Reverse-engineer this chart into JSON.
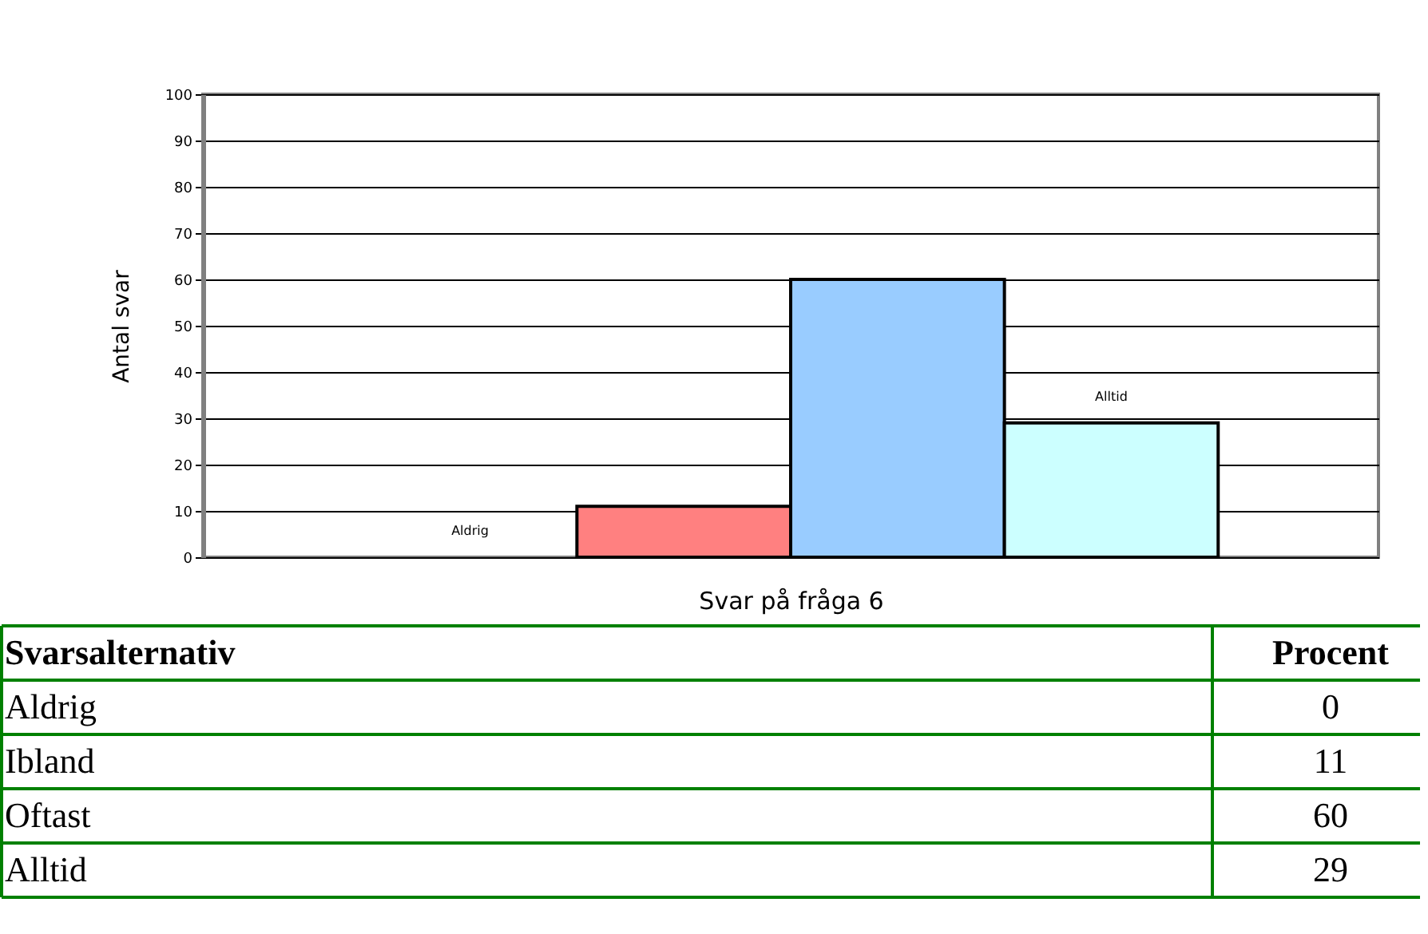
{
  "chart_data": [
    {
      "type": "bar",
      "xlabel": "Svar på fråga 6",
      "ylabel": "Antal svar",
      "categories": [
        null,
        null,
        null,
        null
      ],
      "values": [
        0,
        11,
        60,
        29
      ],
      "colors": [
        "#ffffff",
        "#ff8080",
        "#99ccff",
        "#ccffff"
      ],
      "value_labels": [
        null,
        null,
        null,
        "Alltid"
      ],
      "annotations": [
        "Aldrig"
      ],
      "ylim": [
        0,
        100
      ],
      "yticks": [
        0,
        10,
        20,
        30,
        40,
        50,
        60,
        70,
        80,
        90,
        100
      ],
      "grid": "y",
      "tick_labels": "y"
    },
    {
      "type": "other",
      "categories": [
        "Aldrig",
        "Ibland",
        "Oftast",
        "Alltid"
      ],
      "values": [
        0,
        11,
        60,
        29
      ],
      "annotations": [
        "Svarsalternativ",
        "Procent"
      ],
      "data_labels": true
    }
  ]
}
